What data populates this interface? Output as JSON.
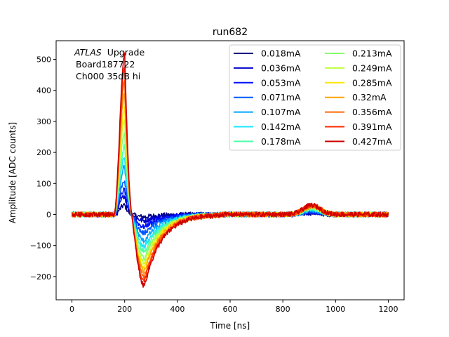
{
  "chart_data": {
    "type": "line",
    "title": "run682",
    "xlabel": "Time [ns]",
    "ylabel": "Amplitude [ADC counts]",
    "xlim": [
      -60,
      1260
    ],
    "ylim": [
      -275,
      560
    ],
    "xticks": [
      0,
      200,
      400,
      600,
      800,
      1000,
      1200
    ],
    "yticks": [
      -200,
      -100,
      0,
      100,
      200,
      300,
      400,
      500
    ],
    "annotation": {
      "atlas": "ATLAS",
      "line1_suffix": "Upgrade",
      "line2": "Board187722",
      "line3": "Ch000 35dB hi"
    },
    "legend": {
      "placement": "top-right",
      "columns": 2
    },
    "pulse_shape": {
      "x_start": 0,
      "x_end": 1200,
      "baseline": 0,
      "rise_start": 160,
      "peak_time": 200,
      "zero_cross": 227,
      "trough_time": 275,
      "recovery_end": 560,
      "bump_center": 910
    },
    "series": [
      {
        "name": "0.018mA",
        "color": "#00007f",
        "peak": 30,
        "trough": -8,
        "bump": 5
      },
      {
        "name": "0.036mA",
        "color": "#0000cc",
        "peak": 60,
        "trough": -20,
        "bump": 8
      },
      {
        "name": "0.053mA",
        "color": "#0010ff",
        "peak": 80,
        "trough": -40,
        "bump": 10
      },
      {
        "name": "0.071mA",
        "color": "#0058ff",
        "peak": 110,
        "trough": -60,
        "bump": 12
      },
      {
        "name": "0.107mA",
        "color": "#00a4ff",
        "peak": 155,
        "trough": -85,
        "bump": 15
      },
      {
        "name": "0.142mA",
        "color": "#1ce6ff",
        "peak": 185,
        "trough": -105,
        "bump": 18
      },
      {
        "name": "0.178mA",
        "color": "#4dffa9",
        "peak": 220,
        "trough": -120,
        "bump": 20
      },
      {
        "name": "0.213mA",
        "color": "#88ff6e",
        "peak": 265,
        "trough": -140,
        "bump": 22
      },
      {
        "name": "0.249mA",
        "color": "#bfff37",
        "peak": 300,
        "trough": -155,
        "bump": 24
      },
      {
        "name": "0.285mA",
        "color": "#ffe600",
        "peak": 340,
        "trough": -170,
        "bump": 26
      },
      {
        "name": "0.32mA",
        "color": "#ffa400",
        "peak": 390,
        "trough": -185,
        "bump": 27
      },
      {
        "name": "0.356mA",
        "color": "#ff6800",
        "peak": 425,
        "trough": -200,
        "bump": 28
      },
      {
        "name": "0.391mA",
        "color": "#ff2800",
        "peak": 470,
        "trough": -215,
        "bump": 29
      },
      {
        "name": "0.427mA",
        "color": "#cc0000",
        "peak": 515,
        "trough": -230,
        "bump": 30
      }
    ]
  }
}
